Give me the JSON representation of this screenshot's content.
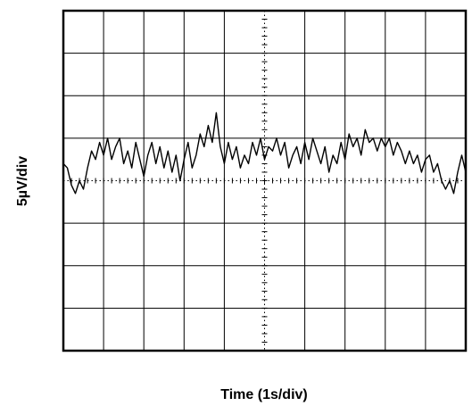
{
  "chart_data": {
    "type": "line",
    "title": "",
    "xlabel": "Time (1s/div)",
    "ylabel": "5µV/div",
    "xlim": [
      0,
      10
    ],
    "ylim": [
      -4,
      4
    ],
    "x_divisions": 10,
    "y_divisions": 8,
    "grid": true,
    "colors": {
      "trace": "#000000",
      "grid": "#000000",
      "background": "#ffffff"
    },
    "series": [
      {
        "x": [
          0.0,
          0.1,
          0.2,
          0.3,
          0.4,
          0.5,
          0.6,
          0.7,
          0.8,
          0.9,
          1.0,
          1.1,
          1.2,
          1.3,
          1.4,
          1.5,
          1.6,
          1.7,
          1.8,
          1.9,
          2.0,
          2.1,
          2.2,
          2.3,
          2.4,
          2.5,
          2.6,
          2.7,
          2.8,
          2.9,
          3.0,
          3.1,
          3.2,
          3.3,
          3.4,
          3.5,
          3.6,
          3.7,
          3.8,
          3.9,
          4.0,
          4.1,
          4.2,
          4.3,
          4.4,
          4.5,
          4.6,
          4.7,
          4.8,
          4.9,
          5.0,
          5.1,
          5.2,
          5.3,
          5.4,
          5.5,
          5.6,
          5.7,
          5.8,
          5.9,
          6.0,
          6.1,
          6.2,
          6.3,
          6.4,
          6.5,
          6.6,
          6.7,
          6.8,
          6.9,
          7.0,
          7.1,
          7.2,
          7.3,
          7.4,
          7.5,
          7.6,
          7.7,
          7.8,
          7.9,
          8.0,
          8.1,
          8.2,
          8.3,
          8.4,
          8.5,
          8.6,
          8.7,
          8.8,
          8.9,
          9.0,
          9.1,
          9.2,
          9.3,
          9.4,
          9.5,
          9.6,
          9.7,
          9.8,
          9.9,
          10.0
        ],
        "y": [
          0.4,
          0.3,
          -0.1,
          -0.3,
          0.0,
          -0.2,
          0.3,
          0.7,
          0.5,
          0.9,
          0.6,
          1.0,
          0.5,
          0.8,
          1.0,
          0.4,
          0.7,
          0.3,
          0.9,
          0.5,
          0.1,
          0.6,
          0.9,
          0.4,
          0.8,
          0.3,
          0.7,
          0.2,
          0.6,
          0.0,
          0.5,
          0.9,
          0.3,
          0.6,
          1.1,
          0.8,
          1.3,
          0.9,
          1.6,
          0.8,
          0.4,
          0.9,
          0.5,
          0.8,
          0.3,
          0.6,
          0.4,
          0.9,
          0.6,
          1.0,
          0.5,
          0.8,
          0.7,
          1.0,
          0.6,
          0.9,
          0.3,
          0.6,
          0.8,
          0.4,
          0.9,
          0.5,
          1.0,
          0.7,
          0.4,
          0.8,
          0.2,
          0.6,
          0.4,
          0.9,
          0.5,
          1.1,
          0.8,
          1.0,
          0.6,
          1.2,
          0.9,
          1.0,
          0.7,
          1.0,
          0.8,
          1.0,
          0.6,
          0.9,
          0.7,
          0.4,
          0.7,
          0.4,
          0.6,
          0.2,
          0.5,
          0.6,
          0.2,
          0.4,
          0.0,
          -0.2,
          0.0,
          -0.3,
          0.2,
          0.6,
          0.2
        ]
      }
    ]
  }
}
